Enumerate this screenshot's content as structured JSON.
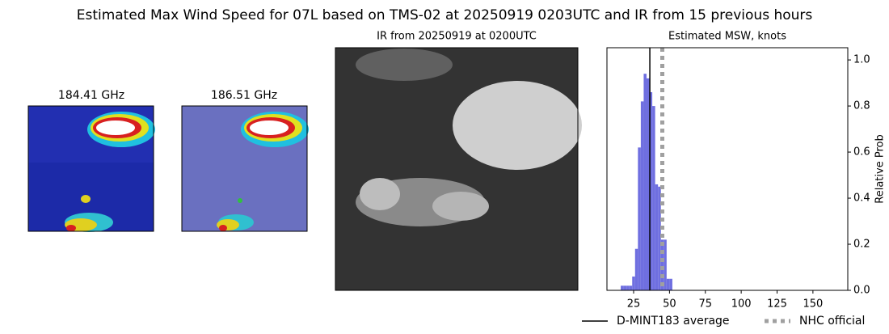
{
  "title": "Estimated Max Wind Speed for 07L based on TMS-02 at 20250919 0203UTC and IR from 15 previous hours",
  "panels": [
    {
      "label": "184.41 GHz"
    },
    {
      "label": "186.51 GHz"
    },
    {
      "label": "IR from 20250919 at 0200UTC"
    }
  ],
  "chart_data": {
    "type": "histogram",
    "title": "Estimated MSW, knots",
    "y_label": "Relative Prob",
    "bins": [
      16,
      18,
      20,
      22,
      24,
      26,
      28,
      30,
      32,
      34,
      36,
      38,
      40,
      42,
      44,
      46,
      48,
      50,
      52
    ],
    "values": [
      0.02,
      0.02,
      0.02,
      0.02,
      0.06,
      0.18,
      0.62,
      0.82,
      0.94,
      0.92,
      0.86,
      0.8,
      0.46,
      0.45,
      0.22,
      0.22,
      0.05,
      0.05
    ],
    "color": "#6f6fe0",
    "xlim": [
      6.4,
      174.3
    ],
    "xticks": [
      25,
      50,
      75,
      100,
      125,
      150
    ],
    "ylim": [
      0,
      1.053
    ],
    "yticks": [
      {
        "value": 0,
        "label": "0.0"
      },
      0.2,
      0.4,
      0.6,
      0.8,
      {
        "value": 1,
        "label": "1.0"
      }
    ],
    "y_axis_side": "right",
    "lines": [
      {
        "name": "D-MINT183 average",
        "value": 36.3,
        "color": "#000000",
        "style": "solid"
      },
      {
        "name": "NHC official",
        "value": 45,
        "color": "#a0a0a0",
        "style": "dotted"
      }
    ]
  }
}
